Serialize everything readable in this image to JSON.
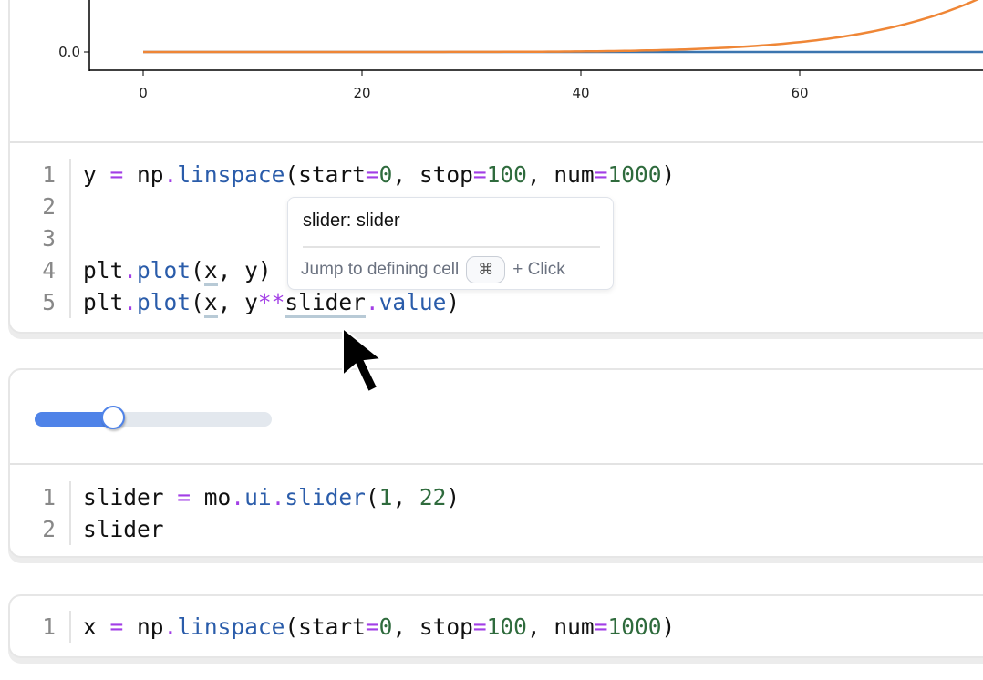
{
  "chart_data": {
    "type": "line",
    "x_ticks": [
      "0",
      "20",
      "40",
      "60"
    ],
    "y_ticks": [
      "0.0"
    ],
    "xlim": [
      -5,
      77
    ],
    "series": [
      {
        "formula": "y = x",
        "color": "#3b75af"
      },
      {
        "formula": "y = x ** slider.value",
        "color": "#ef8636"
      }
    ]
  },
  "cells": [
    {
      "lines": [
        [
          [
            "y ",
            "plain"
          ],
          [
            "=",
            "op"
          ],
          [
            " np",
            "plain"
          ],
          [
            ".",
            "op"
          ],
          [
            "linspace",
            "fn"
          ],
          [
            "(start",
            "plain"
          ],
          [
            "=",
            "op"
          ],
          [
            "0",
            "num"
          ],
          [
            ", stop",
            "plain"
          ],
          [
            "=",
            "op"
          ],
          [
            "100",
            "num"
          ],
          [
            ", num",
            "plain"
          ],
          [
            "=",
            "op"
          ],
          [
            "1000",
            "num"
          ],
          [
            ")",
            "plain"
          ]
        ],
        [],
        [],
        [
          [
            "plt",
            "plain"
          ],
          [
            ".",
            "op"
          ],
          [
            "plot",
            "fn"
          ],
          [
            "(",
            "plain"
          ],
          [
            "x",
            "plain",
            "ul"
          ],
          [
            ", y)",
            "plain"
          ]
        ],
        [
          [
            "plt",
            "plain"
          ],
          [
            ".",
            "op"
          ],
          [
            "plot",
            "fn"
          ],
          [
            "(",
            "plain"
          ],
          [
            "x",
            "plain",
            "ul"
          ],
          [
            ", y",
            "plain"
          ],
          [
            "**",
            "op"
          ],
          [
            "slider",
            "plain",
            "ul"
          ],
          [
            ".",
            "op"
          ],
          [
            "value",
            "fn"
          ],
          [
            ")",
            "plain"
          ]
        ]
      ]
    },
    {
      "lines": [
        [
          [
            "slider ",
            "plain"
          ],
          [
            "=",
            "op"
          ],
          [
            " mo",
            "plain"
          ],
          [
            ".",
            "op"
          ],
          [
            "ui",
            "fn"
          ],
          [
            ".",
            "op"
          ],
          [
            "slider",
            "fn"
          ],
          [
            "(",
            "plain"
          ],
          [
            "1",
            "num"
          ],
          [
            ", ",
            "plain"
          ],
          [
            "22",
            "num"
          ],
          [
            ")",
            "plain"
          ]
        ],
        [
          [
            "slider",
            "plain"
          ]
        ]
      ]
    },
    {
      "lines": [
        [
          [
            "x ",
            "plain"
          ],
          [
            "=",
            "op"
          ],
          [
            " np",
            "plain"
          ],
          [
            ".",
            "op"
          ],
          [
            "linspace",
            "fn"
          ],
          [
            "(start",
            "plain"
          ],
          [
            "=",
            "op"
          ],
          [
            "0",
            "num"
          ],
          [
            ", stop",
            "plain"
          ],
          [
            "=",
            "op"
          ],
          [
            "100",
            "num"
          ],
          [
            ", num",
            "plain"
          ],
          [
            "=",
            "op"
          ],
          [
            "1000",
            "num"
          ],
          [
            ")",
            "plain"
          ]
        ]
      ]
    }
  ],
  "tooltip": {
    "title": "slider: slider",
    "hint": "Jump to defining cell",
    "key": "⌘",
    "suffix": "+ Click"
  },
  "slider": {
    "min": 1,
    "max": 22,
    "value": 7,
    "fill_color": "#4f83e8",
    "track_color": "#e3e8ee"
  },
  "cursor": {
    "icon": "arrow-cursor-icon"
  }
}
